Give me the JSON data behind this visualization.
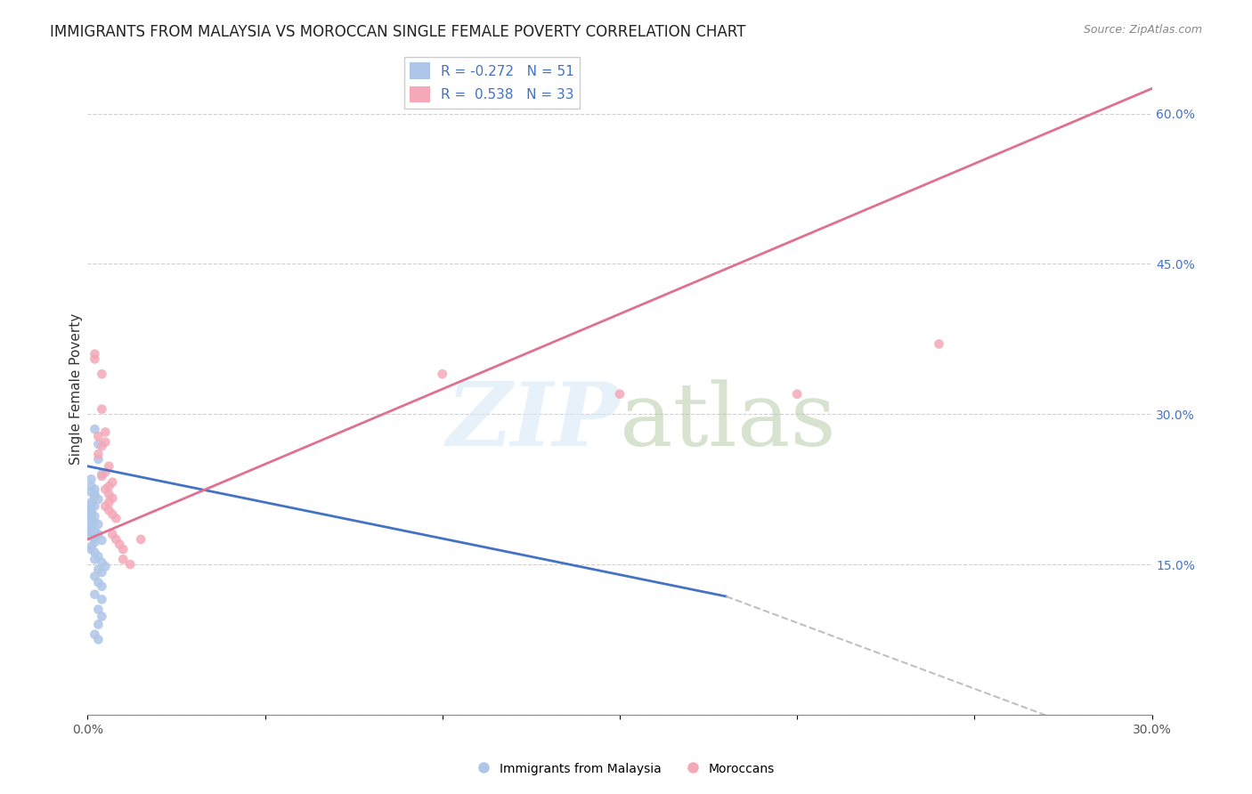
{
  "title": "IMMIGRANTS FROM MALAYSIA VS MOROCCAN SINGLE FEMALE POVERTY CORRELATION CHART",
  "source": "Source: ZipAtlas.com",
  "xlabel": "",
  "ylabel": "Single Female Poverty",
  "xlim": [
    0,
    0.3
  ],
  "ylim": [
    0,
    0.65
  ],
  "right_yticks": [
    0.0,
    0.15,
    0.3,
    0.45,
    0.6
  ],
  "right_yticklabels": [
    "",
    "15.0%",
    "30.0%",
    "45.0%",
    "60.0%"
  ],
  "xticks": [
    0.0,
    0.05,
    0.1,
    0.15,
    0.2,
    0.25,
    0.3
  ],
  "xticklabels": [
    "0.0%",
    "",
    "",
    "",
    "",
    "",
    "30.0%"
  ],
  "legend_r_malaysia": "-0.272",
  "legend_n_malaysia": "51",
  "legend_r_morocco": "0.538",
  "legend_n_morocco": "33",
  "malaysia_color": "#aec6e8",
  "morocco_color": "#f4a8b8",
  "malaysia_line_color": "#4472c4",
  "morocco_line_color": "#e07090",
  "trendline_dashed_color": "#c0c0c0",
  "background_color": "#ffffff",
  "grid_color": "#d0d0d0",
  "watermark": "ZIPatlas",
  "malaysia_points": [
    [
      0.002,
      0.285
    ],
    [
      0.003,
      0.27
    ],
    [
      0.003,
      0.255
    ],
    [
      0.004,
      0.24
    ],
    [
      0.001,
      0.235
    ],
    [
      0.001,
      0.228
    ],
    [
      0.002,
      0.225
    ],
    [
      0.001,
      0.222
    ],
    [
      0.002,
      0.22
    ],
    [
      0.002,
      0.218
    ],
    [
      0.003,
      0.215
    ],
    [
      0.001,
      0.212
    ],
    [
      0.001,
      0.21
    ],
    [
      0.002,
      0.208
    ],
    [
      0.001,
      0.206
    ],
    [
      0.001,
      0.204
    ],
    [
      0.001,
      0.202
    ],
    [
      0.001,
      0.2
    ],
    [
      0.002,
      0.198
    ],
    [
      0.001,
      0.196
    ],
    [
      0.001,
      0.194
    ],
    [
      0.002,
      0.192
    ],
    [
      0.003,
      0.19
    ],
    [
      0.001,
      0.188
    ],
    [
      0.001,
      0.186
    ],
    [
      0.002,
      0.184
    ],
    [
      0.001,
      0.182
    ],
    [
      0.003,
      0.18
    ],
    [
      0.001,
      0.178
    ],
    [
      0.002,
      0.176
    ],
    [
      0.004,
      0.174
    ],
    [
      0.002,
      0.172
    ],
    [
      0.001,
      0.168
    ],
    [
      0.001,
      0.165
    ],
    [
      0.002,
      0.162
    ],
    [
      0.003,
      0.158
    ],
    [
      0.002,
      0.155
    ],
    [
      0.004,
      0.152
    ],
    [
      0.005,
      0.148
    ],
    [
      0.003,
      0.145
    ],
    [
      0.004,
      0.142
    ],
    [
      0.002,
      0.138
    ],
    [
      0.003,
      0.132
    ],
    [
      0.004,
      0.128
    ],
    [
      0.002,
      0.12
    ],
    [
      0.004,
      0.115
    ],
    [
      0.003,
      0.105
    ],
    [
      0.004,
      0.098
    ],
    [
      0.003,
      0.09
    ],
    [
      0.002,
      0.08
    ],
    [
      0.003,
      0.075
    ]
  ],
  "morocco_points": [
    [
      0.002,
      0.36
    ],
    [
      0.002,
      0.355
    ],
    [
      0.004,
      0.34
    ],
    [
      0.004,
      0.305
    ],
    [
      0.005,
      0.282
    ],
    [
      0.003,
      0.278
    ],
    [
      0.005,
      0.272
    ],
    [
      0.004,
      0.268
    ],
    [
      0.003,
      0.26
    ],
    [
      0.006,
      0.248
    ],
    [
      0.005,
      0.242
    ],
    [
      0.004,
      0.238
    ],
    [
      0.007,
      0.232
    ],
    [
      0.006,
      0.228
    ],
    [
      0.005,
      0.225
    ],
    [
      0.006,
      0.22
    ],
    [
      0.007,
      0.216
    ],
    [
      0.006,
      0.212
    ],
    [
      0.005,
      0.208
    ],
    [
      0.006,
      0.204
    ],
    [
      0.007,
      0.2
    ],
    [
      0.008,
      0.196
    ],
    [
      0.007,
      0.18
    ],
    [
      0.008,
      0.175
    ],
    [
      0.009,
      0.17
    ],
    [
      0.01,
      0.165
    ],
    [
      0.1,
      0.34
    ],
    [
      0.15,
      0.32
    ],
    [
      0.2,
      0.32
    ],
    [
      0.24,
      0.37
    ],
    [
      0.01,
      0.155
    ],
    [
      0.012,
      0.15
    ],
    [
      0.015,
      0.175
    ]
  ]
}
